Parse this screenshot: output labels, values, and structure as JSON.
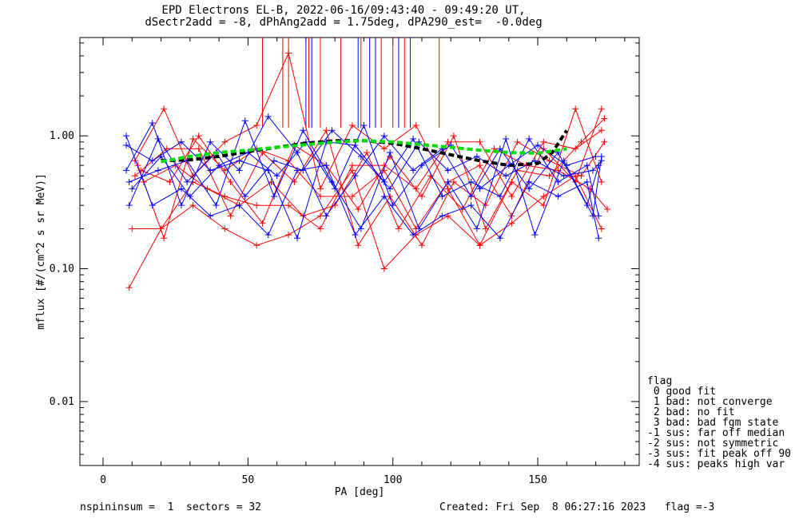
{
  "chart_data": {
    "type": "line",
    "title": "EPD Electrons EL-B, 2022-06-16/09:43:40 - 09:49:20 UT,",
    "subtitle": "dSectr2add = -8, dPhAng2add = 1.75deg, dPA290_est=  -0.0deg",
    "xlabel": "PA [deg]",
    "ylabel": "mflux [#/(cm^2 s sr MeV)]",
    "xlim": [
      -8,
      185
    ],
    "ylim": [
      0.0033,
      5.5
    ],
    "yscale": "log",
    "x_ticks": [
      0,
      50,
      100,
      150
    ],
    "x_tick_labels": [
      "0",
      "50",
      "100",
      "150"
    ],
    "y_ticks": [
      0.01,
      0.1,
      1.0
    ],
    "y_tick_labels": [
      "0.01",
      "0.10",
      "1.00"
    ],
    "grid": false,
    "series": [
      {
        "color": "#ff0000",
        "style": "line+plus",
        "x": [
          9,
          20,
          31,
          42,
          53,
          64,
          75,
          86,
          97,
          108,
          119,
          130,
          141,
          152,
          163,
          172
        ],
        "y": [
          0.072,
          0.2,
          0.3,
          0.2,
          0.15,
          0.18,
          0.25,
          0.55,
          0.1,
          0.18,
          0.25,
          0.15,
          0.22,
          0.35,
          0.5,
          0.2
        ]
      },
      {
        "color": "#ff0000",
        "style": "line+plus",
        "x": [
          10,
          20,
          31,
          42,
          53,
          64,
          75,
          86,
          97,
          108,
          119,
          130,
          141,
          152,
          163,
          172
        ],
        "y": [
          0.2,
          0.2,
          0.45,
          0.35,
          0.3,
          0.3,
          0.2,
          0.6,
          0.6,
          0.4,
          0.9,
          0.9,
          0.35,
          0.9,
          0.8,
          1.1
        ]
      },
      {
        "color": "#ff0000",
        "style": "line+plus",
        "x": [
          11,
          21,
          31,
          42,
          53,
          64,
          75,
          86,
          97,
          108,
          119,
          130,
          141,
          152,
          163,
          172
        ],
        "y": [
          0.65,
          1.6,
          0.5,
          0.9,
          1.2,
          4.2,
          0.4,
          1.2,
          0.8,
          1.2,
          0.4,
          0.15,
          0.45,
          0.3,
          1.6,
          0.45
        ]
      },
      {
        "color": "#ff0000",
        "style": "line+plus",
        "x": [
          12,
          21,
          31,
          42,
          53,
          64,
          75,
          86,
          97,
          108,
          119,
          130,
          141,
          152,
          163,
          172
        ],
        "y": [
          0.6,
          0.17,
          0.95,
          0.55,
          0.8,
          0.65,
          0.35,
          0.35,
          0.55,
          0.2,
          0.45,
          0.6,
          0.25,
          0.8,
          0.45,
          1.6
        ]
      },
      {
        "color": "#ff0000",
        "style": "line+plus",
        "x": [
          11,
          22,
          33,
          44,
          55,
          66,
          77,
          88,
          99,
          110,
          121,
          132,
          143,
          154,
          165,
          173
        ],
        "y": [
          0.5,
          0.8,
          0.8,
          0.25,
          0.75,
          0.45,
          1.1,
          0.15,
          0.35,
          0.15,
          0.45,
          0.3,
          0.9,
          0.65,
          0.5,
          0.9
        ]
      },
      {
        "color": "#ff0000",
        "style": "line+plus",
        "x": [
          13,
          23,
          33,
          44,
          55,
          66,
          77,
          88,
          99,
          110,
          121,
          132,
          143,
          154,
          165,
          173
        ],
        "y": [
          0.55,
          0.45,
          1.0,
          0.45,
          0.22,
          0.85,
          0.6,
          0.28,
          0.7,
          0.35,
          1.0,
          0.2,
          0.55,
          0.5,
          0.9,
          1.35
        ]
      },
      {
        "color": "#ff0000",
        "style": "line+plus",
        "x": [
          14,
          25,
          36,
          47,
          58,
          69,
          80,
          91,
          102,
          113,
          124,
          135,
          146,
          157,
          168,
          174
        ],
        "y": [
          0.45,
          0.6,
          0.4,
          0.3,
          0.45,
          0.25,
          0.3,
          0.75,
          0.2,
          0.5,
          0.28,
          0.8,
          0.6,
          0.55,
          0.4,
          0.28
        ]
      },
      {
        "color": "#0000ff",
        "style": "line+plus",
        "x": [
          8,
          17,
          27,
          37,
          47,
          57,
          67,
          77,
          87,
          97,
          107,
          117,
          127,
          137,
          147,
          157,
          167,
          171
        ],
        "y": [
          1.0,
          0.3,
          0.4,
          0.25,
          0.3,
          0.18,
          0.55,
          0.6,
          0.18,
          0.35,
          0.18,
          0.25,
          0.3,
          0.17,
          0.45,
          0.35,
          0.45,
          0.17
        ]
      },
      {
        "color": "#0000ff",
        "style": "line+plus",
        "x": [
          8,
          17,
          27,
          37,
          47,
          57,
          67,
          77,
          87,
          97,
          107,
          117,
          127,
          137,
          147,
          157,
          167,
          171
        ],
        "y": [
          0.85,
          0.65,
          0.9,
          0.55,
          0.65,
          0.55,
          0.17,
          0.9,
          0.85,
          0.45,
          0.95,
          0.35,
          0.45,
          0.35,
          0.95,
          0.45,
          0.6,
          0.25
        ]
      },
      {
        "color": "#0000ff",
        "style": "line+plus",
        "x": [
          8,
          17,
          27,
          37,
          47,
          57,
          67,
          77,
          87,
          97,
          107,
          117,
          127,
          137,
          147,
          157,
          167,
          171
        ],
        "y": [
          0.55,
          1.25,
          0.3,
          0.9,
          0.55,
          1.4,
          0.75,
          0.25,
          0.5,
          1.0,
          0.55,
          0.8,
          0.35,
          0.8,
          0.4,
          0.75,
          0.3,
          0.6
        ]
      },
      {
        "color": "#0000ff",
        "style": "line+plus",
        "x": [
          9,
          19,
          29,
          39,
          49,
          59,
          69,
          79,
          89,
          99,
          109,
          119,
          129,
          139,
          149,
          159,
          169,
          172
        ],
        "y": [
          0.45,
          0.55,
          0.65,
          0.3,
          1.3,
          0.35,
          1.1,
          0.45,
          0.2,
          0.75,
          0.2,
          0.45,
          0.2,
          0.95,
          0.18,
          0.65,
          0.25,
          0.7
        ]
      },
      {
        "color": "#0000ff",
        "style": "line+plus",
        "x": [
          9,
          19,
          29,
          39,
          49,
          59,
          69,
          79,
          89,
          99,
          109,
          119,
          129,
          139,
          149,
          159,
          169,
          172
        ],
        "y": [
          0.3,
          0.95,
          0.45,
          0.75,
          0.35,
          0.65,
          0.55,
          1.1,
          0.7,
          0.4,
          0.9,
          0.55,
          0.7,
          0.5,
          0.65,
          0.5,
          0.55,
          0.65
        ]
      },
      {
        "color": "#0000ff",
        "style": "line+plus",
        "x": [
          10,
          20,
          30,
          40,
          50,
          60,
          70,
          80,
          90,
          100,
          110,
          120,
          130,
          140,
          150,
          160,
          170
        ],
        "y": [
          0.4,
          0.7,
          0.35,
          0.6,
          0.75,
          0.5,
          0.9,
          0.4,
          1.2,
          0.3,
          0.6,
          0.85,
          0.4,
          0.6,
          0.85,
          0.6,
          0.7
        ]
      }
    ],
    "vertical_spikes": [
      {
        "color": "#ff0000",
        "x": [
          55,
          62,
          64,
          71,
          75,
          82,
          89,
          96,
          100,
          104,
          116
        ]
      },
      {
        "color": "#0000ff",
        "x": [
          70,
          72,
          88,
          92,
          94,
          102,
          106
        ]
      }
    ],
    "fits": [
      {
        "color": "#000000",
        "style": "dashed",
        "x": [
          20,
          30,
          40,
          50,
          60,
          70,
          80,
          90,
          100,
          110,
          120,
          130,
          140,
          150,
          155,
          160
        ],
        "y": [
          0.65,
          0.66,
          0.7,
          0.76,
          0.82,
          0.88,
          0.92,
          0.92,
          0.88,
          0.8,
          0.72,
          0.65,
          0.6,
          0.62,
          0.75,
          1.1
        ]
      },
      {
        "color": "#00dd00",
        "style": "dashed",
        "x": [
          20,
          30,
          40,
          50,
          60,
          70,
          80,
          90,
          100,
          110,
          120,
          130,
          140,
          150,
          160
        ],
        "y": [
          0.64,
          0.7,
          0.75,
          0.78,
          0.82,
          0.86,
          0.9,
          0.92,
          0.9,
          0.86,
          0.82,
          0.78,
          0.75,
          0.74,
          0.8
        ]
      }
    ]
  },
  "legend": {
    "title": "flag",
    "entries": [
      " 0 good fit",
      " 1 bad: not converge",
      " 2 bad: no fit",
      " 3 bad: bad fgm state",
      "-1 sus: far off median",
      "-2 sus: not symmetric",
      "-3 sus: fit peak off 90",
      "-4 sus: peaks high var"
    ]
  },
  "footer": {
    "left": "nspininsum =  1  sectors = 32",
    "right": "Created: Fri Sep  8 06:27:16 2023   flag =-3"
  }
}
